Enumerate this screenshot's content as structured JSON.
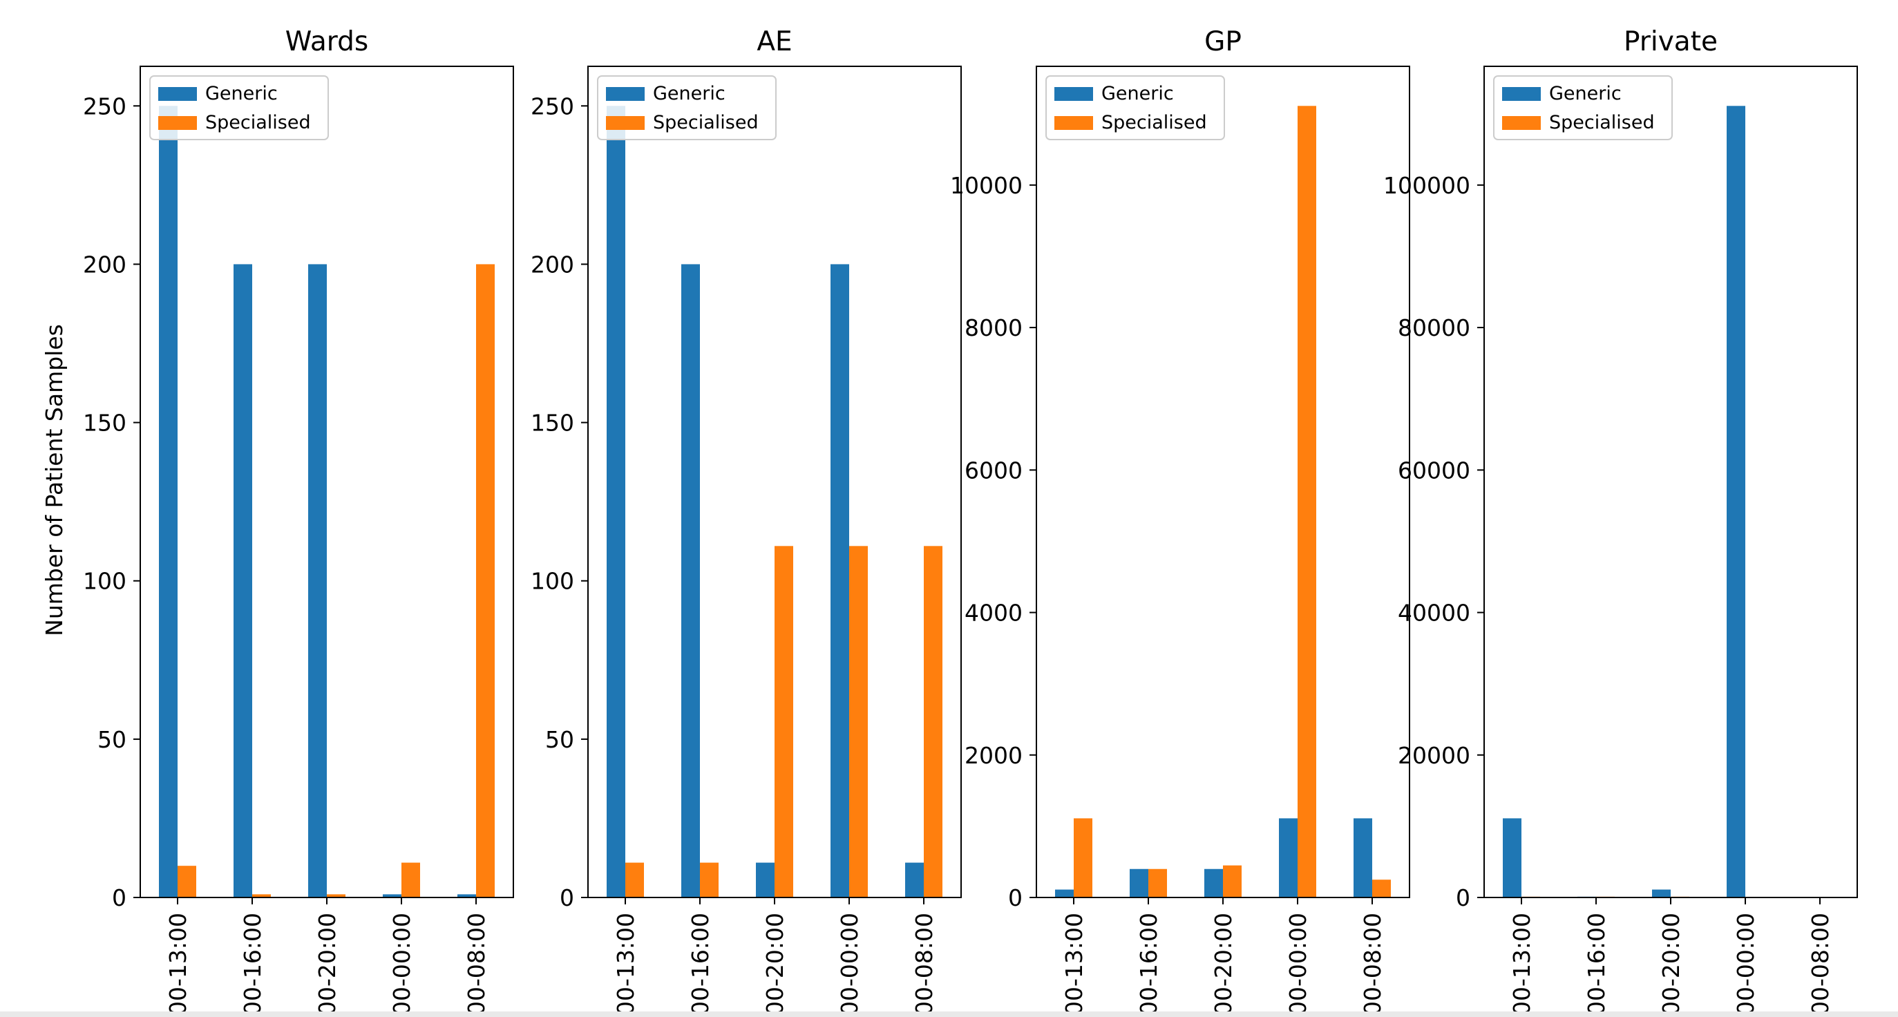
{
  "figure": {
    "ylabel": "Number of Patient Samples"
  },
  "chart_data": [
    {
      "type": "bar",
      "title": "Wards",
      "categories": [
        "00-13:00",
        "00-16:00",
        "00-20:00",
        "00-00:00",
        "00-08:00"
      ],
      "series": [
        {
          "name": "Generic",
          "color": "#1f77b4",
          "values": [
            250,
            200,
            200,
            1,
            1
          ]
        },
        {
          "name": "Specialised",
          "color": "#ff7f0e",
          "values": [
            10,
            1,
            1,
            11,
            200
          ]
        }
      ],
      "ylim": [
        0,
        262.5
      ],
      "yticks": [
        0,
        50,
        100,
        150,
        200,
        250
      ],
      "legend": "top-left",
      "grid": false
    },
    {
      "type": "bar",
      "title": "AE",
      "categories": [
        "00-13:00",
        "00-16:00",
        "00-20:00",
        "00-00:00",
        "00-08:00"
      ],
      "series": [
        {
          "name": "Generic",
          "color": "#1f77b4",
          "values": [
            250,
            200,
            11,
            200,
            11
          ]
        },
        {
          "name": "Specialised",
          "color": "#ff7f0e",
          "values": [
            11,
            11,
            111,
            111,
            111
          ]
        }
      ],
      "ylim": [
        0,
        262.5
      ],
      "yticks": [
        0,
        50,
        100,
        150,
        200,
        250
      ],
      "legend": "top-left",
      "grid": false
    },
    {
      "type": "bar",
      "title": "GP",
      "categories": [
        "00-13:00",
        "00-16:00",
        "00-20:00",
        "00-00:00",
        "00-08:00"
      ],
      "series": [
        {
          "name": "Generic",
          "color": "#1f77b4",
          "values": [
            111,
            400,
            400,
            1111,
            1111
          ]
        },
        {
          "name": "Specialised",
          "color": "#ff7f0e",
          "values": [
            1111,
            400,
            450,
            11111,
            250
          ]
        }
      ],
      "ylim": [
        0,
        11666.55
      ],
      "yticks": [
        0,
        2000,
        4000,
        6000,
        8000,
        10000
      ],
      "legend": "top-left",
      "grid": false
    },
    {
      "type": "bar",
      "title": "Private",
      "categories": [
        "00-13:00",
        "00-16:00",
        "00-20:00",
        "00-00:00",
        "00-08:00"
      ],
      "series": [
        {
          "name": "Generic",
          "color": "#1f77b4",
          "values": [
            11111,
            111,
            1111,
            111111,
            1
          ]
        },
        {
          "name": "Specialised",
          "color": "#ff7f0e",
          "values": [
            111,
            111,
            111,
            1,
            1
          ]
        }
      ],
      "ylim": [
        0,
        116666.55
      ],
      "yticks": [
        0,
        20000,
        40000,
        60000,
        80000,
        100000
      ],
      "legend": "top-left",
      "grid": false
    }
  ]
}
